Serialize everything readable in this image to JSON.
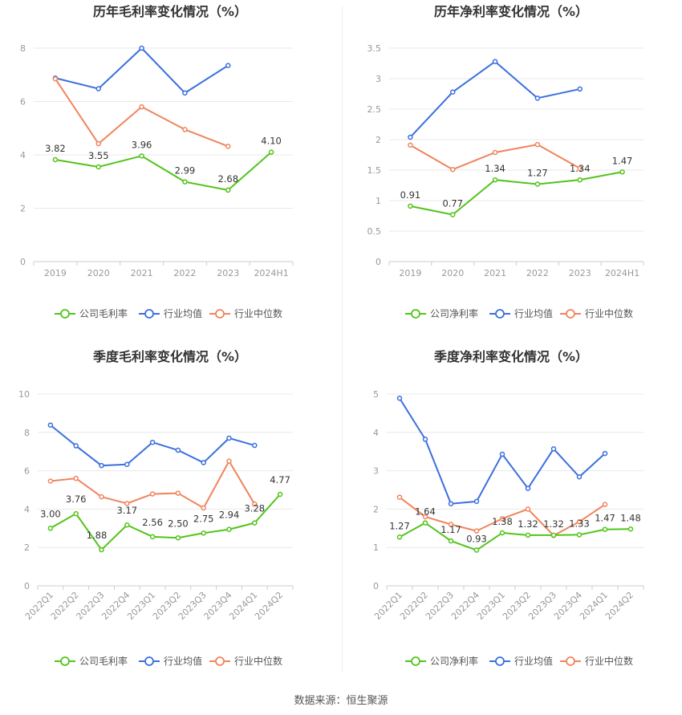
{
  "source": "数据来源：恒生聚源",
  "colors": {
    "company": "#52c41a",
    "industry_avg": "#3b6fde",
    "industry_median": "#f0845d"
  },
  "chart_data": [
    {
      "type": "line",
      "title": "历年毛利率变化情况（%）",
      "categories": [
        "2019",
        "2020",
        "2021",
        "2022",
        "2023",
        "2024H1"
      ],
      "ylim": [
        0,
        8
      ],
      "yticks": [
        0,
        2,
        4,
        6,
        8
      ],
      "grid": true,
      "legend_placement": "bottom",
      "series": [
        {
          "name": "公司毛利率",
          "values": [
            3.82,
            3.55,
            3.96,
            2.99,
            2.68,
            4.1
          ],
          "labels": [
            "3.82",
            "3.55",
            "3.96",
            "2.99",
            "2.68",
            "4.10"
          ]
        },
        {
          "name": "行业均值",
          "values": [
            6.88,
            6.48,
            8.0,
            6.32,
            7.35,
            null
          ]
        },
        {
          "name": "行业中位数",
          "values": [
            6.85,
            4.42,
            5.8,
            4.95,
            4.32,
            null
          ]
        }
      ]
    },
    {
      "type": "line",
      "title": "历年净利率变化情况（%）",
      "categories": [
        "2019",
        "2020",
        "2021",
        "2022",
        "2023",
        "2024H1"
      ],
      "ylim": [
        0,
        3.5
      ],
      "yticks": [
        0,
        0.5,
        1,
        1.5,
        2,
        2.5,
        3,
        3.5
      ],
      "grid": true,
      "legend_placement": "bottom",
      "series": [
        {
          "name": "公司净利率",
          "values": [
            0.91,
            0.77,
            1.34,
            1.27,
            1.34,
            1.47
          ],
          "labels": [
            "0.91",
            "0.77",
            "1.34",
            "1.27",
            "1.34",
            "1.47"
          ]
        },
        {
          "name": "行业均值",
          "values": [
            2.04,
            2.78,
            3.28,
            2.68,
            2.83,
            null
          ]
        },
        {
          "name": "行业中位数",
          "values": [
            1.91,
            1.51,
            1.79,
            1.92,
            1.53,
            null
          ]
        }
      ]
    },
    {
      "type": "line",
      "title": "季度毛利率变化情况（%）",
      "categories": [
        "2022Q1",
        "2022Q2",
        "2022Q3",
        "2022Q4",
        "2023Q1",
        "2023Q2",
        "2023Q3",
        "2023Q4",
        "2024Q1",
        "2024Q2"
      ],
      "ylim": [
        0,
        10
      ],
      "yticks": [
        0,
        2,
        4,
        6,
        8,
        10
      ],
      "grid": true,
      "legend_placement": "bottom",
      "series": [
        {
          "name": "公司毛利率",
          "values": [
            3.0,
            3.76,
            1.88,
            3.17,
            2.56,
            2.5,
            2.75,
            2.94,
            3.28,
            4.77
          ],
          "labels": [
            "3.00",
            "3.76",
            "1.88",
            "3.17",
            "2.56",
            "2.50",
            "2.75",
            "2.94",
            "3.28",
            "4.77"
          ]
        },
        {
          "name": "行业均值",
          "values": [
            8.38,
            7.3,
            6.27,
            6.33,
            7.48,
            7.07,
            6.42,
            7.7,
            7.32,
            null
          ]
        },
        {
          "name": "行业中位数",
          "values": [
            5.46,
            5.6,
            4.64,
            4.29,
            4.79,
            4.83,
            4.06,
            6.5,
            4.26,
            null
          ]
        }
      ]
    },
    {
      "type": "line",
      "title": "季度净利率变化情况（%）",
      "categories": [
        "2022Q1",
        "2022Q2",
        "2022Q3",
        "2022Q4",
        "2023Q1",
        "2023Q2",
        "2023Q3",
        "2023Q4",
        "2024Q1",
        "2024Q2"
      ],
      "ylim": [
        0,
        5
      ],
      "yticks": [
        0,
        1,
        2,
        3,
        4,
        5
      ],
      "grid": true,
      "legend_placement": "bottom",
      "series": [
        {
          "name": "公司净利率",
          "values": [
            1.27,
            1.64,
            1.17,
            0.93,
            1.38,
            1.32,
            1.32,
            1.33,
            1.47,
            1.48
          ],
          "labels": [
            "1.27",
            "1.64",
            "1.17",
            "0.93",
            "1.38",
            "1.32",
            "1.32",
            "1.33",
            "1.47",
            "1.48"
          ]
        },
        {
          "name": "行业均值",
          "values": [
            4.89,
            3.82,
            2.14,
            2.2,
            3.43,
            2.54,
            3.57,
            2.84,
            3.45,
            null
          ]
        },
        {
          "name": "行业中位数",
          "values": [
            2.31,
            1.8,
            1.6,
            1.43,
            1.75,
            2.0,
            1.31,
            1.67,
            2.12,
            null
          ]
        }
      ]
    }
  ]
}
